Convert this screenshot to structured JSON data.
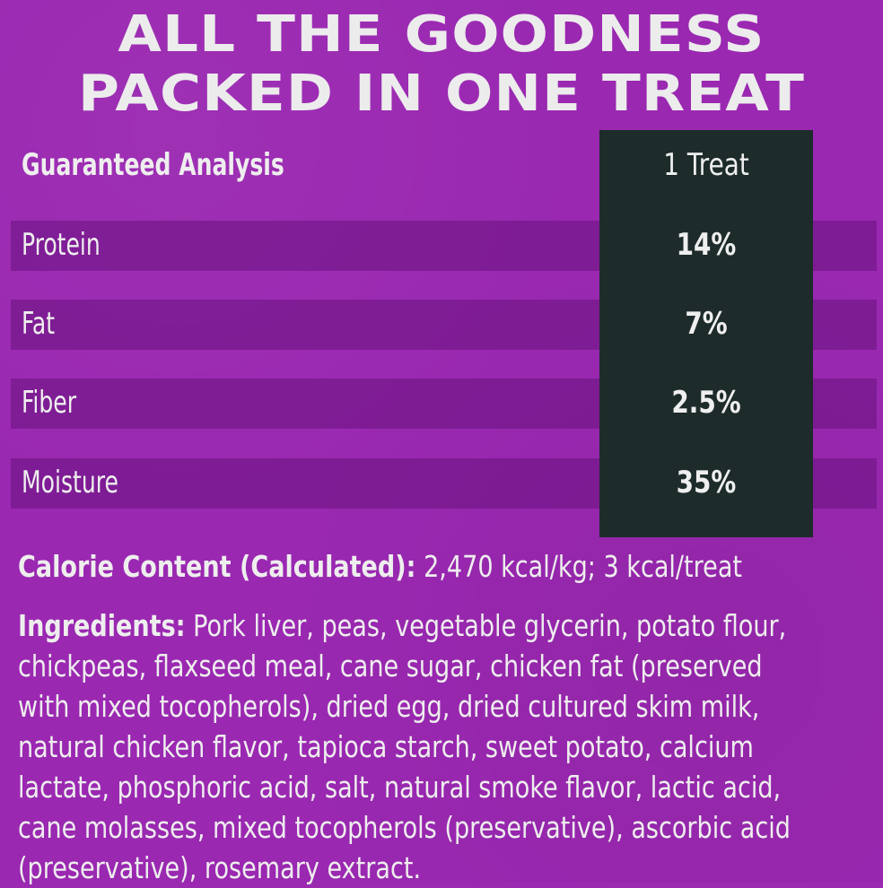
{
  "headline": {
    "line1": "ALL THE GOODNESS",
    "line2": "PACKED IN ONE TREAT"
  },
  "table": {
    "header": {
      "label": "Guaranteed Analysis",
      "value": "1 Treat"
    },
    "rows": [
      {
        "label": "Protein",
        "value": "14%"
      },
      {
        "label": "Fat",
        "value": "7%"
      },
      {
        "label": "Fiber",
        "value": "2.5%"
      },
      {
        "label": "Moisture",
        "value": "35%"
      }
    ]
  },
  "calorie": {
    "label": "Calorie Content (Calculated):",
    "value": "2,470 kcal/kg; 3 kcal/treat"
  },
  "ingredients": {
    "label": "Ingredients:",
    "lines": [
      "Pork liver, peas, vegetable glycerin, potato flour,",
      "chickpeas, flaxseed meal, cane sugar, chicken fat (preserved",
      "with mixed tocopherols), dried egg, dried cultured skim milk,",
      "natural chicken flavor, tapioca starch, sweet potato, calcium",
      "lactate, phosphoric acid, salt, natural smoke flavor, lactic acid,",
      "cane molasses, mixed tocopherols (preservative), ascorbic acid",
      "(preservative), rosemary extract."
    ]
  },
  "colors": {
    "background": "#9a28b1",
    "band": "#7b1a92",
    "dark_column": "#1e2b2b",
    "text": "#eeeeee"
  }
}
